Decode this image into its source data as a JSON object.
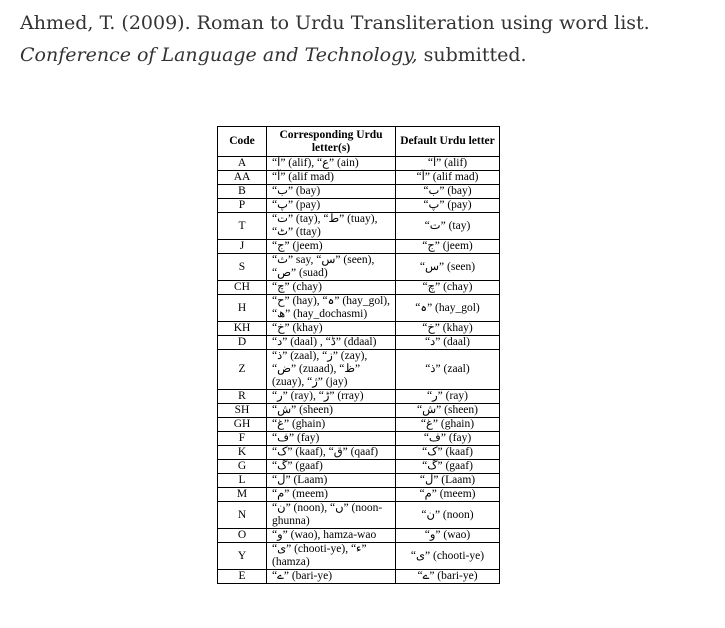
{
  "citation": {
    "authors_year_title": "Ahmed, T. (2009). Roman to Urdu Transliteration using word list. ",
    "venue": "Conference of Language and Technology,",
    "status": " submitted."
  },
  "table": {
    "headers": [
      "Code",
      "Corresponding Urdu letter(s)",
      "Default Urdu letter"
    ],
    "rows": [
      {
        "code": "A",
        "corr": "“ا” (alif), “ع” (ain)",
        "def": "“ا” (alif)"
      },
      {
        "code": "AA",
        "corr": "“آ” (alif mad)",
        "def": "“آ” (alif mad)"
      },
      {
        "code": "B",
        "corr": "“ب” (bay)",
        "def": "“ب” (bay)"
      },
      {
        "code": "P",
        "corr": "“پ” (pay)",
        "def": "“پ” (pay)"
      },
      {
        "code": "T",
        "corr": "“ت” (tay), “ط” (tuay), “ٹ” (ttay)",
        "def": "“ت” (tay)"
      },
      {
        "code": "J",
        "corr": "“ج” (jeem)",
        "def": "“ج” (jeem)"
      },
      {
        "code": "S",
        "corr": "“ث” say, “س” (seen), “ص” (suad)",
        "def": "“س” (seen)"
      },
      {
        "code": "CH",
        "corr": "“چ” (chay)",
        "def": "“چ” (chay)"
      },
      {
        "code": "H",
        "corr": "“ح” (hay), “ہ” (hay_gol), “ھ” (hay_dochasmi)",
        "def": "“ہ” (hay_gol)"
      },
      {
        "code": "KH",
        "corr": "“خ” (khay)",
        "def": "“خ” (khay)"
      },
      {
        "code": "D",
        "corr": "“د” (daal) , “ڈ” (ddaal)",
        "def": "“د” (daal)"
      },
      {
        "code": "Z",
        "corr": "“ذ” (zaal), “ز” (zay), “ض” (zuaad), “ظ” (zuay), “ژ” (jay)",
        "def": "“ذ” (zaal)"
      },
      {
        "code": "R",
        "corr": "“ر” (ray), “ڑ” (rray)",
        "def": "“ر” (ray)"
      },
      {
        "code": "SH",
        "corr": "“ش” (sheen)",
        "def": "“ش” (sheen)"
      },
      {
        "code": "GH",
        "corr": "“غ” (ghain)",
        "def": "“غ” (ghain)"
      },
      {
        "code": "F",
        "corr": "“ف” (fay)",
        "def": "“ف” (fay)"
      },
      {
        "code": "K",
        "corr": "“ک” (kaaf), “ق” (qaaf)",
        "def": "“ک” (kaaf)"
      },
      {
        "code": "G",
        "corr": "“گ” (gaaf)",
        "def": "“گ” (gaaf)"
      },
      {
        "code": "L",
        "corr": "“ل” (Laam)",
        "def": "“ل” (Laam)"
      },
      {
        "code": "M",
        "corr": "“م” (meem)",
        "def": "“م” (meem)"
      },
      {
        "code": "N",
        "corr": "“ن” (noon), “ں” (noon-ghunna)",
        "def": "“ن” (noon)"
      },
      {
        "code": "O",
        "corr": "“و” (wao), hamza-wao",
        "def": "“و” (wao)"
      },
      {
        "code": "Y",
        "corr": "“ی” (chooti-ye), “ء” (hamza)",
        "def": "“ی” (chooti-ye)"
      },
      {
        "code": "E",
        "corr": "“ے” (bari-ye)",
        "def": "“ے” (bari-ye)"
      }
    ]
  }
}
